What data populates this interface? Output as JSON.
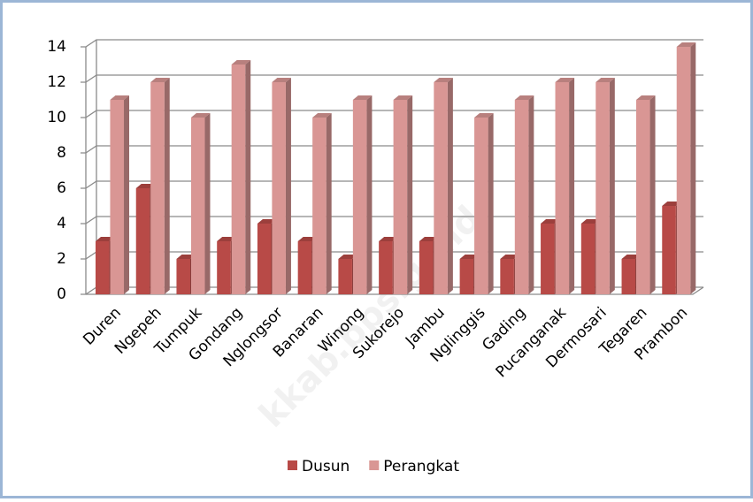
{
  "chart_data": {
    "type": "bar",
    "categories": [
      "Duren",
      "Ngepeh",
      "Tumpuk",
      "Gondang",
      "Nglongsor",
      "Banaran",
      "Winong",
      "Sukorejo",
      "Jambu",
      "Nglinggis",
      "Gading",
      "Pucanganak",
      "Dermosari",
      "Tegaren",
      "Prambon"
    ],
    "series": [
      {
        "name": "Dusun",
        "color": "#b84a47",
        "values": [
          3,
          6,
          2,
          3,
          4,
          3,
          2,
          3,
          3,
          2,
          2,
          4,
          4,
          2,
          5
        ]
      },
      {
        "name": "Perangkat",
        "color": "#d99694",
        "values": [
          11,
          12,
          10,
          13,
          12,
          10,
          11,
          11,
          12,
          10,
          11,
          12,
          12,
          11,
          14
        ]
      }
    ],
    "ylim": [
      0,
      14
    ],
    "yticks": [
      0,
      2,
      4,
      6,
      8,
      10,
      12,
      14
    ],
    "grid": true,
    "legend": "bottom",
    "watermark": "kkab.bps.go.id"
  }
}
